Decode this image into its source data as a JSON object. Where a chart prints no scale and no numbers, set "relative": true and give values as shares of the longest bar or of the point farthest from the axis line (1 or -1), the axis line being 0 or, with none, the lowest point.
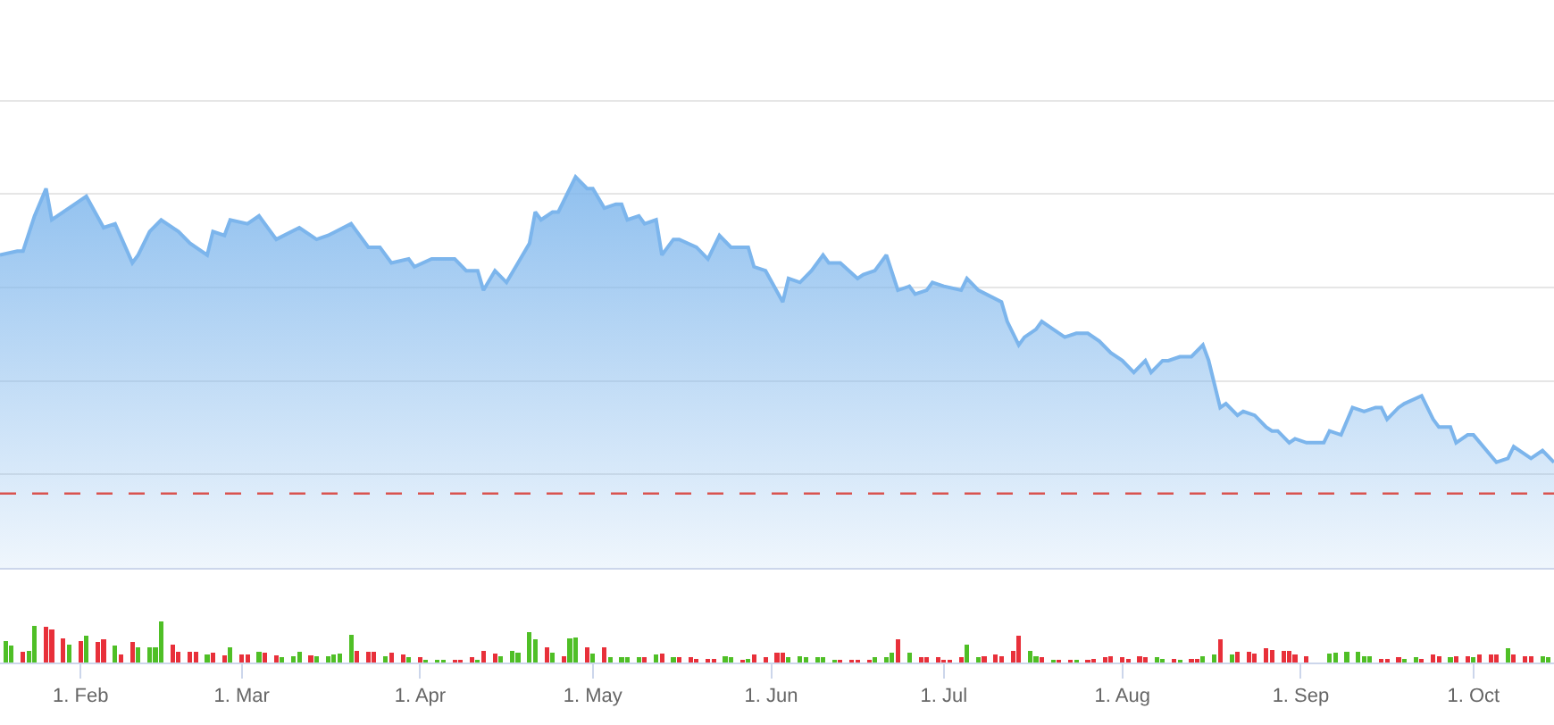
{
  "chart_data": [
    {
      "type": "area",
      "relative": true,
      "color": "#7cb5ec",
      "grid": "y",
      "tick_labels": false,
      "xlim": [
        "--01-18",
        "--10-15"
      ],
      "xticks": [
        {
          "value": "--02-01",
          "label": "1. Feb"
        },
        {
          "value": "--03-01",
          "label": "1. Mar"
        },
        {
          "value": "--04-01",
          "label": "1. Apr"
        },
        {
          "value": "--05-01",
          "label": "1. May"
        },
        {
          "value": "--06-01",
          "label": "1. Jun"
        },
        {
          "value": "--07-01",
          "label": "1. Jul"
        },
        {
          "value": "--08-01",
          "label": "1. Aug"
        },
        {
          "value": "--09-01",
          "label": "1. Sep"
        },
        {
          "value": "--10-01",
          "label": "1. Oct"
        }
      ],
      "x": [
        "--01-18",
        "--01-21",
        "--01-22",
        "--01-24",
        "--01-26",
        "--01-27",
        "--01-31",
        "--02-02",
        "--02-05",
        "--02-07",
        "--02-10",
        "--02-11",
        "--02-13",
        "--02-15",
        "--02-18",
        "--02-20",
        "--02-23",
        "--02-24",
        "--02-26",
        "--02-27",
        "--03-02",
        "--03-04",
        "--03-07",
        "--03-11",
        "--03-14",
        "--03-16",
        "--03-20",
        "--03-21",
        "--03-23",
        "--03-25",
        "--03-27",
        "--03-30",
        "--03-31",
        "--04-03",
        "--04-07",
        "--04-09",
        "--04-11",
        "--04-12",
        "--04-14",
        "--04-16",
        "--04-18",
        "--04-20",
        "--04-21",
        "--04-22",
        "--04-24",
        "--04-25",
        "--04-28",
        "--04-30",
        "--05-01",
        "--05-03",
        "--05-05",
        "--05-06",
        "--05-07",
        "--05-09",
        "--05-10",
        "--05-12",
        "--05-13",
        "--05-15",
        "--05-16",
        "--05-19",
        "--05-21",
        "--05-22",
        "--05-23",
        "--05-25",
        "--05-28",
        "--05-29",
        "--05-31",
        "--06-03",
        "--06-04",
        "--06-06",
        "--06-08",
        "--06-10",
        "--06-11",
        "--06-13",
        "--06-16",
        "--06-17",
        "--06-19",
        "--06-21",
        "--06-23",
        "--06-25",
        "--06-26",
        "--06-28",
        "--06-29",
        "--07-01",
        "--07-04",
        "--07-05",
        "--07-07",
        "--07-11",
        "--07-12",
        "--07-14",
        "--07-15",
        "--07-17",
        "--07-18",
        "--07-20",
        "--07-22",
        "--07-24",
        "--07-26",
        "--07-28",
        "--07-30",
        "--08-01",
        "--08-03",
        "--08-05",
        "--08-06",
        "--08-08",
        "--08-09",
        "--08-11",
        "--08-13",
        "--08-15",
        "--08-16",
        "--08-18",
        "--08-19",
        "--08-21",
        "--08-22",
        "--08-24",
        "--08-26",
        "--08-27",
        "--08-28",
        "--08-30",
        "--08-31",
        "--09-02",
        "--09-04",
        "--09-05",
        "--09-06",
        "--09-08",
        "--09-10",
        "--09-12",
        "--09-14",
        "--09-15",
        "--09-16",
        "--09-18",
        "--09-19",
        "--09-22",
        "--09-24",
        "--09-25",
        "--09-27",
        "--09-28",
        "--09-30",
        "--10-01",
        "--10-05",
        "--10-07",
        "--10-08",
        "--10-11",
        "--10-13",
        "--10-15"
      ],
      "values": [
        0.8,
        0.81,
        0.81,
        0.9,
        0.97,
        0.89,
        0.93,
        0.95,
        0.87,
        0.88,
        0.78,
        0.8,
        0.86,
        0.89,
        0.86,
        0.83,
        0.8,
        0.86,
        0.85,
        0.89,
        0.88,
        0.9,
        0.84,
        0.87,
        0.84,
        0.85,
        0.88,
        0.86,
        0.82,
        0.82,
        0.78,
        0.79,
        0.77,
        0.79,
        0.79,
        0.76,
        0.76,
        0.71,
        0.76,
        0.73,
        0.78,
        0.83,
        0.91,
        0.89,
        0.91,
        0.91,
        1.0,
        0.97,
        0.97,
        0.92,
        0.93,
        0.93,
        0.89,
        0.9,
        0.88,
        0.89,
        0.8,
        0.84,
        0.84,
        0.82,
        0.79,
        0.82,
        0.85,
        0.82,
        0.82,
        0.77,
        0.76,
        0.68,
        0.74,
        0.73,
        0.76,
        0.8,
        0.78,
        0.78,
        0.74,
        0.75,
        0.76,
        0.8,
        0.71,
        0.72,
        0.7,
        0.71,
        0.73,
        0.72,
        0.71,
        0.74,
        0.71,
        0.68,
        0.63,
        0.57,
        0.59,
        0.61,
        0.63,
        0.61,
        0.59,
        0.6,
        0.6,
        0.58,
        0.55,
        0.53,
        0.5,
        0.53,
        0.5,
        0.53,
        0.53,
        0.54,
        0.54,
        0.57,
        0.53,
        0.41,
        0.42,
        0.39,
        0.4,
        0.39,
        0.36,
        0.35,
        0.35,
        0.32,
        0.33,
        0.32,
        0.32,
        0.32,
        0.35,
        0.34,
        0.41,
        0.4,
        0.41,
        0.41,
        0.38,
        0.41,
        0.42,
        0.44,
        0.38,
        0.36,
        0.36,
        0.32,
        0.34,
        0.34,
        0.27,
        0.28,
        0.31,
        0.28,
        0.3,
        0.27
      ],
      "ref_lines": [
        {
          "axis": "y",
          "value": 0.19,
          "color": "#d9534f",
          "line_style": "dashed"
        }
      ]
    },
    {
      "type": "bar",
      "relative": true,
      "xlim": [
        "--01-18",
        "--10-15"
      ],
      "xticks": [
        {
          "value": "--02-01",
          "label": "1. Feb"
        },
        {
          "value": "--03-01",
          "label": "1. Mar"
        },
        {
          "value": "--04-01",
          "label": "1. Apr"
        },
        {
          "value": "--05-01",
          "label": "1. May"
        },
        {
          "value": "--06-01",
          "label": "1. Jun"
        },
        {
          "value": "--07-01",
          "label": "1. Jul"
        },
        {
          "value": "--08-01",
          "label": "1. Aug"
        },
        {
          "value": "--09-01",
          "label": "1. Sep"
        },
        {
          "value": "--10-01",
          "label": "1. Oct"
        }
      ],
      "x": [
        "--01-19",
        "--01-20",
        "--01-22",
        "--01-23",
        "--01-24",
        "--01-26",
        "--01-27",
        "--01-29",
        "--01-30",
        "--02-01",
        "--02-02",
        "--02-04",
        "--02-05",
        "--02-07",
        "--02-08",
        "--02-10",
        "--02-11",
        "--02-13",
        "--02-14",
        "--02-15",
        "--02-17",
        "--02-18",
        "--02-20",
        "--02-21",
        "--02-23",
        "--02-24",
        "--02-26",
        "--02-27",
        "--03-01",
        "--03-02",
        "--03-04",
        "--03-05",
        "--03-07",
        "--03-08",
        "--03-10",
        "--03-11",
        "--03-13",
        "--03-14",
        "--03-16",
        "--03-17",
        "--03-18",
        "--03-20",
        "--03-21",
        "--03-23",
        "--03-24",
        "--03-26",
        "--03-27",
        "--03-29",
        "--03-30",
        "--04-01",
        "--04-02",
        "--04-04",
        "--04-05",
        "--04-07",
        "--04-08",
        "--04-10",
        "--04-11",
        "--04-12",
        "--04-14",
        "--04-15",
        "--04-17",
        "--04-18",
        "--04-20",
        "--04-21",
        "--04-23",
        "--04-24",
        "--04-26",
        "--04-27",
        "--04-28",
        "--04-30",
        "--05-01",
        "--05-03",
        "--05-04",
        "--05-06",
        "--05-07",
        "--05-09",
        "--05-10",
        "--05-12",
        "--05-13",
        "--05-15",
        "--05-16",
        "--05-18",
        "--05-19",
        "--05-21",
        "--05-22",
        "--05-24",
        "--05-25",
        "--05-27",
        "--05-28",
        "--05-29",
        "--05-31",
        "--06-02",
        "--06-03",
        "--06-04",
        "--06-06",
        "--06-07",
        "--06-09",
        "--06-10",
        "--06-12",
        "--06-13",
        "--06-15",
        "--06-16",
        "--06-18",
        "--06-19",
        "--06-21",
        "--06-22",
        "--06-23",
        "--06-25",
        "--06-27",
        "--06-28",
        "--06-30",
        "--07-01",
        "--07-02",
        "--07-04",
        "--07-05",
        "--07-07",
        "--07-08",
        "--07-10",
        "--07-11",
        "--07-13",
        "--07-14",
        "--07-16",
        "--07-17",
        "--07-18",
        "--07-20",
        "--07-21",
        "--07-23",
        "--07-24",
        "--07-26",
        "--07-27",
        "--07-29",
        "--07-30",
        "--08-01",
        "--08-02",
        "--08-04",
        "--08-05",
        "--08-07",
        "--08-08",
        "--08-10",
        "--08-11",
        "--08-13",
        "--08-14",
        "--08-15",
        "--08-17",
        "--08-18",
        "--08-20",
        "--08-21",
        "--08-23",
        "--08-24",
        "--08-26",
        "--08-27",
        "--08-29",
        "--08-30",
        "--08-31",
        "--09-02",
        "--09-06",
        "--09-07",
        "--09-09",
        "--09-11",
        "--09-12",
        "--09-13",
        "--09-15",
        "--09-16",
        "--09-18",
        "--09-19",
        "--09-21",
        "--09-22",
        "--09-24",
        "--09-25",
        "--09-27",
        "--09-28",
        "--09-30",
        "--10-01",
        "--10-02",
        "--10-04",
        "--10-05",
        "--10-07",
        "--10-08",
        "--10-10",
        "--10-11",
        "--10-13",
        "--10-14"
      ],
      "values": [
        0.53,
        0.41,
        0.26,
        0.29,
        0.9,
        0.88,
        0.81,
        0.59,
        0.44,
        0.53,
        0.66,
        0.51,
        0.56,
        0.41,
        0.19,
        0.51,
        0.37,
        0.38,
        0.38,
        1.0,
        0.44,
        0.26,
        0.26,
        0.26,
        0.19,
        0.24,
        0.18,
        0.38,
        0.19,
        0.19,
        0.26,
        0.24,
        0.18,
        0.12,
        0.15,
        0.26,
        0.18,
        0.16,
        0.16,
        0.19,
        0.22,
        0.68,
        0.29,
        0.26,
        0.26,
        0.16,
        0.24,
        0.19,
        0.12,
        0.12,
        0.06,
        0.06,
        0.06,
        0.07,
        0.07,
        0.12,
        0.06,
        0.29,
        0.22,
        0.16,
        0.29,
        0.24,
        0.74,
        0.56,
        0.37,
        0.24,
        0.16,
        0.59,
        0.62,
        0.37,
        0.22,
        0.38,
        0.12,
        0.12,
        0.12,
        0.12,
        0.12,
        0.19,
        0.22,
        0.12,
        0.12,
        0.12,
        0.09,
        0.09,
        0.09,
        0.16,
        0.12,
        0.06,
        0.09,
        0.19,
        0.12,
        0.24,
        0.24,
        0.12,
        0.15,
        0.12,
        0.12,
        0.12,
        0.07,
        0.07,
        0.07,
        0.07,
        0.07,
        0.12,
        0.12,
        0.24,
        0.56,
        0.24,
        0.12,
        0.12,
        0.12,
        0.06,
        0.07,
        0.12,
        0.44,
        0.12,
        0.16,
        0.19,
        0.16,
        0.29,
        0.66,
        0.29,
        0.16,
        0.12,
        0.07,
        0.07,
        0.07,
        0.07,
        0.07,
        0.09,
        0.12,
        0.15,
        0.12,
        0.09,
        0.16,
        0.12,
        0.12,
        0.09,
        0.09,
        0.06,
        0.09,
        0.09,
        0.15,
        0.19,
        0.56,
        0.19,
        0.26,
        0.26,
        0.22,
        0.34,
        0.31,
        0.29,
        0.29,
        0.19,
        0.15,
        0.22,
        0.24,
        0.26,
        0.26,
        0.15,
        0.15,
        0.09,
        0.09,
        0.12,
        0.09,
        0.12,
        0.09,
        0.19,
        0.16,
        0.12,
        0.16,
        0.16,
        0.12,
        0.19,
        0.19,
        0.19,
        0.34,
        0.19,
        0.15,
        0.16,
        0.15,
        0.12
      ],
      "colors": [
        "#4fbf26",
        "#4fbf26",
        "#e8303a",
        "#4fbf26",
        "#4fbf26",
        "#e8303a",
        "#e8303a",
        "#e8303a",
        "#4fbf26",
        "#e8303a",
        "#4fbf26",
        "#e8303a",
        "#e8303a",
        "#4fbf26",
        "#e8303a",
        "#e8303a",
        "#4fbf26",
        "#4fbf26",
        "#4fbf26",
        "#4fbf26",
        "#e8303a",
        "#e8303a",
        "#e8303a",
        "#e8303a",
        "#4fbf26",
        "#e8303a",
        "#e8303a",
        "#4fbf26",
        "#e8303a",
        "#e8303a",
        "#4fbf26",
        "#e8303a",
        "#e8303a",
        "#4fbf26",
        "#4fbf26",
        "#4fbf26",
        "#e8303a",
        "#4fbf26",
        "#4fbf26",
        "#4fbf26",
        "#4fbf26",
        "#4fbf26",
        "#e8303a",
        "#e8303a",
        "#e8303a",
        "#4fbf26",
        "#e8303a",
        "#e8303a",
        "#4fbf26",
        "#e8303a",
        "#4fbf26",
        "#4fbf26",
        "#4fbf26",
        "#e8303a",
        "#e8303a",
        "#e8303a",
        "#4fbf26",
        "#e8303a",
        "#e8303a",
        "#4fbf26",
        "#4fbf26",
        "#4fbf26",
        "#4fbf26",
        "#4fbf26",
        "#e8303a",
        "#4fbf26",
        "#e8303a",
        "#4fbf26",
        "#4fbf26",
        "#e8303a",
        "#4fbf26",
        "#e8303a",
        "#4fbf26",
        "#4fbf26",
        "#4fbf26",
        "#4fbf26",
        "#e8303a",
        "#4fbf26",
        "#e8303a",
        "#4fbf26",
        "#e8303a",
        "#e8303a",
        "#e8303a",
        "#e8303a",
        "#e8303a",
        "#4fbf26",
        "#4fbf26",
        "#e8303a",
        "#4fbf26",
        "#e8303a",
        "#e8303a",
        "#e8303a",
        "#e8303a",
        "#4fbf26",
        "#4fbf26",
        "#4fbf26",
        "#4fbf26",
        "#4fbf26",
        "#4fbf26",
        "#e8303a",
        "#e8303a",
        "#e8303a",
        "#e8303a",
        "#4fbf26",
        "#4fbf26",
        "#4fbf26",
        "#e8303a",
        "#4fbf26",
        "#e8303a",
        "#e8303a",
        "#e8303a",
        "#e8303a",
        "#e8303a",
        "#e8303a",
        "#4fbf26",
        "#4fbf26",
        "#e8303a",
        "#e8303a",
        "#e8303a",
        "#e8303a",
        "#e8303a",
        "#4fbf26",
        "#4fbf26",
        "#e8303a",
        "#4fbf26",
        "#e8303a",
        "#e8303a",
        "#4fbf26",
        "#e8303a",
        "#e8303a",
        "#e8303a",
        "#e8303a",
        "#e8303a",
        "#e8303a",
        "#e8303a",
        "#e8303a",
        "#4fbf26",
        "#4fbf26",
        "#e8303a",
        "#4fbf26",
        "#e8303a",
        "#e8303a",
        "#4fbf26",
        "#4fbf26",
        "#e8303a",
        "#4fbf26",
        "#e8303a",
        "#e8303a",
        "#e8303a",
        "#e8303a",
        "#e8303a",
        "#e8303a",
        "#e8303a",
        "#e8303a",
        "#e8303a",
        "#4fbf26",
        "#4fbf26",
        "#4fbf26",
        "#4fbf26",
        "#4fbf26",
        "#4fbf26",
        "#e8303a",
        "#e8303a",
        "#e8303a",
        "#4fbf26",
        "#4fbf26",
        "#e8303a",
        "#e8303a",
        "#e8303a",
        "#4fbf26",
        "#e8303a",
        "#e8303a",
        "#4fbf26",
        "#e8303a",
        "#e8303a",
        "#e8303a",
        "#4fbf26",
        "#e8303a",
        "#e8303a",
        "#e8303a",
        "#4fbf26",
        "#4fbf26"
      ]
    }
  ]
}
